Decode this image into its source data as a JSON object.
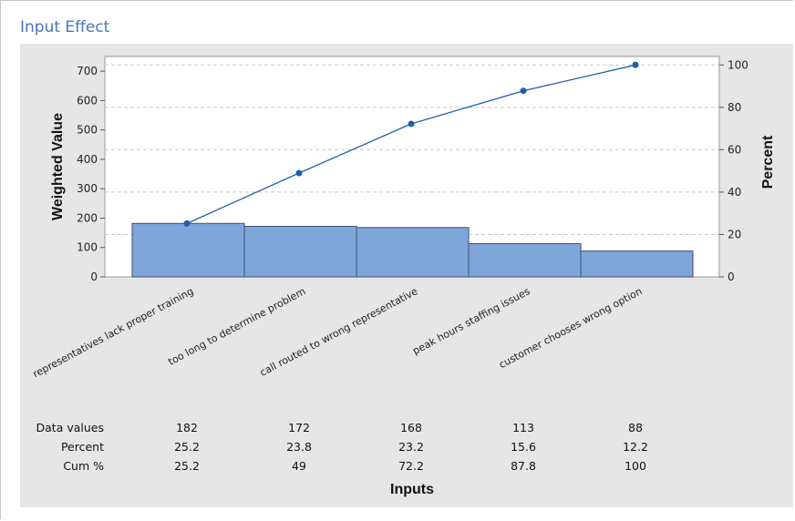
{
  "title": "Input Effect",
  "chart_data": {
    "type": "bar",
    "subtype": "pareto",
    "categories": [
      "representatives lack proper training",
      "too long to determine problem",
      "call routed to wrong representative",
      "peak hours staffing issues",
      "customer chooses wrong option"
    ],
    "values": [
      182,
      172,
      168,
      113,
      88
    ],
    "cumulative_percent": [
      25.2,
      49,
      72.2,
      87.8,
      100
    ],
    "xlabel": "Inputs",
    "ylabel": "Weighted Value",
    "y2label": "Percent",
    "ylim": [
      0,
      750
    ],
    "y2lim": [
      0,
      104
    ],
    "yticks": [
      0,
      100,
      200,
      300,
      400,
      500,
      600,
      700
    ],
    "y2ticks": [
      0,
      20,
      40,
      60,
      80,
      100
    ],
    "grid": "dashed-horizontal",
    "bar_color": "#7fa6db",
    "line_color": "#1f5fa8",
    "table": {
      "row_labels": [
        "Data values",
        "Percent",
        "Cum %"
      ],
      "rows": [
        [
          "182",
          "172",
          "168",
          "113",
          "88"
        ],
        [
          "25.2",
          "23.8",
          "23.2",
          "15.6",
          "12.2"
        ],
        [
          "25.2",
          "49",
          "72.2",
          "87.8",
          "100"
        ]
      ]
    }
  }
}
